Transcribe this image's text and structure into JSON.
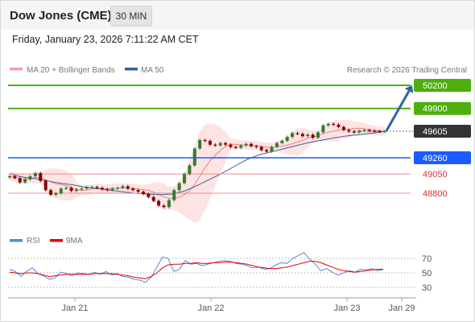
{
  "header": {
    "title": "Dow Jones (CME)",
    "timeframe": "30 MIN",
    "datetime": "Friday, January 23, 2026 7:11:22 AM CET"
  },
  "legend": {
    "ma20_bb": "MA 20 + Bollinger Bands",
    "ma50": "MA 50",
    "rsi": "RSI",
    "ma9": "9MA"
  },
  "credit": "Research © 2026 Trading Central",
  "colors": {
    "up_candle": "#2e7d32",
    "down_candle": "#8b0000",
    "bollinger_fill": "#fde3e3",
    "ma20": "#f08080",
    "ma50": "#3a5f9a",
    "resistance": "#4caf0c",
    "support": "#1a5cff",
    "minor": "#ee8b8b",
    "arrow": "#2f63a8",
    "rsi": "#5e86d9",
    "rsi_ma": "#e00000"
  },
  "chart_data": [
    {
      "type": "candlestick",
      "x_ticks": [
        "Jan 21",
        "Jan 22",
        "Jan 23",
        "Jan 29"
      ],
      "current_price": 49605,
      "price_levels": [
        {
          "value": 50200,
          "label": "50200",
          "kind": "target"
        },
        {
          "value": 49900,
          "label": "49900",
          "kind": "resistance"
        },
        {
          "value": 49260,
          "label": "49260",
          "kind": "pivot"
        },
        {
          "value": 49050,
          "label": "49050",
          "kind": "support"
        },
        {
          "value": 48800,
          "label": "48800",
          "kind": "support"
        }
      ],
      "price_approx": [
        49020,
        48995,
        48940,
        48980,
        49020,
        49060,
        48960,
        48840,
        48780,
        48800,
        48860,
        48870,
        48830,
        48850,
        48860,
        48880,
        48880,
        48870,
        48850,
        48840,
        48860,
        48870,
        48890,
        48860,
        48840,
        48820,
        48790,
        48750,
        48700,
        48640,
        48620,
        48710,
        48840,
        48930,
        49050,
        49160,
        49380,
        49490,
        49480,
        49430,
        49420,
        49450,
        49430,
        49400,
        49390,
        49420,
        49440,
        49410,
        49400,
        49360,
        49340,
        49400,
        49450,
        49480,
        49530,
        49580,
        49570,
        49540,
        49560,
        49520,
        49590,
        49680,
        49700,
        49690,
        49660,
        49620,
        49600,
        49590,
        49610,
        49620,
        49610,
        49605,
        49600,
        49605
      ],
      "ma50_approx": [
        49050,
        49010,
        48990,
        48960,
        48930,
        48910,
        48880,
        48860,
        48840,
        48820,
        48800,
        48790,
        48780,
        48790,
        48830,
        48900,
        48980,
        49060,
        49150,
        49240,
        49300,
        49340,
        49380,
        49420,
        49460,
        49490,
        49520,
        49545,
        49560,
        49580,
        49600
      ],
      "projection": {
        "from": 49610,
        "to": 50200
      }
    },
    {
      "type": "line",
      "name": "RSI",
      "y_ticks": [
        70,
        50,
        30
      ],
      "ylim": [
        20,
        80
      ],
      "rsi_approx": [
        55,
        52,
        45,
        52,
        57,
        49,
        46,
        41,
        43,
        51,
        49,
        46,
        50,
        49,
        48,
        51,
        48,
        52,
        47,
        49,
        45,
        44,
        41,
        40,
        37,
        44,
        58,
        72,
        70,
        52,
        55,
        67,
        62,
        63,
        60,
        62,
        64,
        66,
        67,
        66,
        63,
        62,
        60,
        57,
        58,
        55,
        56,
        61,
        64,
        63,
        70,
        74,
        78,
        69,
        62,
        53,
        56,
        51,
        47,
        50,
        53,
        51,
        55,
        54,
        56,
        53,
        55
      ],
      "rsi_ma_approx": [
        51,
        50,
        49,
        50,
        50,
        49,
        47,
        45,
        46,
        47,
        48,
        48,
        48,
        48,
        48,
        49,
        49,
        49,
        49,
        48,
        47,
        46,
        44,
        43,
        42,
        45,
        50,
        57,
        61,
        62,
        62,
        63,
        63,
        64,
        63,
        63,
        64,
        64,
        65,
        65,
        64,
        63,
        62,
        60,
        58,
        57,
        56,
        56,
        57,
        58,
        60,
        62,
        64,
        66,
        66,
        64,
        61,
        58,
        55,
        53,
        52,
        51,
        52,
        53,
        54,
        55,
        55
      ]
    }
  ]
}
